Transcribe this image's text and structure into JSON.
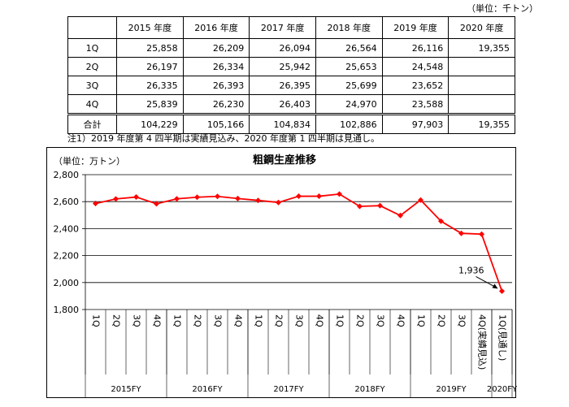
{
  "table": {
    "unit_label": "（単位：千トン）",
    "columns": [
      "2015 年度",
      "2016 年度",
      "2017 年度",
      "2018 年度",
      "2019 年度",
      "2020 年度"
    ],
    "rows": [
      {
        "label": "1Q",
        "values": [
          "25,858",
          "26,209",
          "26,094",
          "26,564",
          "26,116",
          "19,355"
        ]
      },
      {
        "label": "2Q",
        "values": [
          "26,197",
          "26,334",
          "25,942",
          "25,653",
          "24,548",
          ""
        ]
      },
      {
        "label": "3Q",
        "values": [
          "26,335",
          "26,393",
          "26,395",
          "25,699",
          "23,652",
          ""
        ]
      },
      {
        "label": "4Q",
        "values": [
          "25,839",
          "26,230",
          "26,403",
          "24,970",
          "23,588",
          ""
        ]
      }
    ],
    "total": {
      "label": "合計",
      "values": [
        "104,229",
        "105,166",
        "104,834",
        "102,886",
        "97,903",
        "19,355"
      ]
    }
  },
  "note": "注1）2019 年度第 4 四半期は実績見込み、2020 年度第 1 四半期は見通し。",
  "chart_data": {
    "type": "line",
    "title": "粗鋼生産推移",
    "unit_label": "（単位：万トン）",
    "ylim": [
      1800,
      2800
    ],
    "yticks": [
      1800,
      2000,
      2200,
      2400,
      2600,
      2800
    ],
    "ytick_labels": [
      "1,800",
      "2,000",
      "2,200",
      "2,400",
      "2,600",
      "2,800"
    ],
    "grid": true,
    "color": "#ff0000",
    "categories": [
      "1Q",
      "2Q",
      "3Q",
      "4Q",
      "1Q",
      "2Q",
      "3Q",
      "4Q",
      "1Q",
      "2Q",
      "3Q",
      "4Q",
      "1Q",
      "2Q",
      "3Q",
      "4Q",
      "1Q",
      "2Q",
      "3Q",
      "4Q(実績見込)",
      "1Q(見通し)"
    ],
    "values": [
      2586,
      2620,
      2634,
      2584,
      2621,
      2633,
      2639,
      2623,
      2609,
      2594,
      2640,
      2640,
      2656,
      2565,
      2570,
      2497,
      2612,
      2455,
      2365,
      2359,
      1936
    ],
    "groups": [
      {
        "label": "2015FY",
        "start": 0,
        "end": 3
      },
      {
        "label": "2016FY",
        "start": 4,
        "end": 7
      },
      {
        "label": "2017FY",
        "start": 8,
        "end": 11
      },
      {
        "label": "2018FY",
        "start": 12,
        "end": 15
      },
      {
        "label": "2019FY",
        "start": 16,
        "end": 19
      },
      {
        "label": "2020FY",
        "start": 20,
        "end": 20
      }
    ],
    "annotation": {
      "text": "1,936",
      "index": 20
    }
  }
}
